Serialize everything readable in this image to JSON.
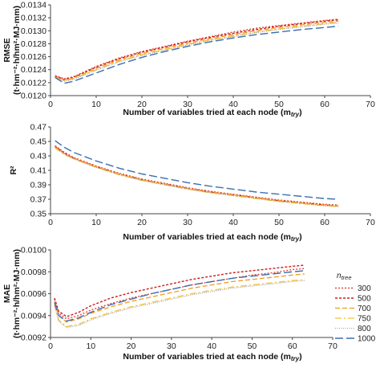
{
  "chart_data": [
    {
      "type": "line",
      "ylabel_main": "RMSE",
      "ylabel_unit": "(t·hm⁻²·h/hm²·MJ·mm)",
      "xlabel": "Number of variables tried at each node (m",
      "xlabel_sub": "try",
      "xlabel_close": ")",
      "xlim": [
        0,
        70
      ],
      "ylim": [
        0.012,
        0.0134
      ],
      "xticks": [
        "0",
        "10",
        "20",
        "30",
        "40",
        "50",
        "60",
        "70"
      ],
      "yticks": [
        "0.0120",
        "0.0122",
        "0.0124",
        "0.0126",
        "0.0128",
        "0.0130",
        "0.0132",
        "0.0134"
      ],
      "series": [
        {
          "id": "300",
          "color": "#e8463c",
          "x": [
            1,
            3,
            5,
            10,
            15,
            20,
            25,
            30,
            35,
            40,
            45,
            50,
            55,
            60,
            63
          ],
          "y": [
            0.01231,
            0.01226,
            0.01229,
            0.01245,
            0.01258,
            0.01268,
            0.01276,
            0.01284,
            0.01291,
            0.01298,
            0.01304,
            0.01308,
            0.01312,
            0.01316,
            0.01318
          ]
        },
        {
          "id": "500",
          "color": "#c8201f",
          "x": [
            1,
            3,
            5,
            10,
            15,
            20,
            25,
            30,
            35,
            40,
            45,
            50,
            55,
            60,
            63
          ],
          "y": [
            0.0123,
            0.01225,
            0.01228,
            0.01244,
            0.01257,
            0.01267,
            0.01275,
            0.01283,
            0.0129,
            0.01296,
            0.01302,
            0.01307,
            0.01311,
            0.01315,
            0.01317
          ]
        },
        {
          "id": "700",
          "color": "#f39a1e",
          "x": [
            1,
            3,
            5,
            10,
            15,
            20,
            25,
            30,
            35,
            40,
            45,
            50,
            55,
            60,
            63
          ],
          "y": [
            0.01229,
            0.01224,
            0.01227,
            0.01242,
            0.01255,
            0.01265,
            0.01273,
            0.01281,
            0.01288,
            0.01294,
            0.013,
            0.01305,
            0.01309,
            0.01313,
            0.01315
          ]
        },
        {
          "id": "750",
          "color": "#f6c233",
          "x": [
            1,
            3,
            5,
            10,
            15,
            20,
            25,
            30,
            35,
            40,
            45,
            50,
            55,
            60,
            63
          ],
          "y": [
            0.01228,
            0.01223,
            0.01226,
            0.0124,
            0.01253,
            0.01263,
            0.01271,
            0.01279,
            0.01286,
            0.01292,
            0.01298,
            0.01303,
            0.01307,
            0.01311,
            0.01313
          ]
        },
        {
          "id": "800",
          "color": "#9b9b9b",
          "x": [
            1,
            3,
            5,
            10,
            15,
            20,
            25,
            30,
            35,
            40,
            45,
            50,
            55,
            60,
            63
          ],
          "y": [
            0.01228,
            0.01222,
            0.01225,
            0.01239,
            0.01252,
            0.01262,
            0.0127,
            0.01278,
            0.01285,
            0.01291,
            0.01297,
            0.01302,
            0.01306,
            0.0131,
            0.01312
          ]
        },
        {
          "id": "1000",
          "color": "#3a6fb0",
          "x": [
            1,
            3,
            5,
            10,
            15,
            20,
            25,
            30,
            35,
            40,
            45,
            50,
            55,
            60,
            63
          ],
          "y": [
            0.01228,
            0.01219,
            0.01222,
            0.01235,
            0.01248,
            0.01259,
            0.01268,
            0.01276,
            0.01283,
            0.01289,
            0.01294,
            0.01298,
            0.01302,
            0.01305,
            0.01307
          ]
        }
      ]
    },
    {
      "type": "line",
      "ylabel_main": "R²",
      "ylabel_unit": "",
      "xlabel": "Number of variables tried at each node (m",
      "xlabel_sub": "try",
      "xlabel_close": ")",
      "xlim": [
        0,
        70
      ],
      "ylim": [
        0.35,
        0.47
      ],
      "xticks": [
        "0",
        "10",
        "20",
        "30",
        "40",
        "50",
        "60",
        "70"
      ],
      "yticks": [
        "0.35",
        "0.37",
        "0.39",
        "0.41",
        "0.43",
        "0.45",
        "0.47"
      ],
      "series": [
        {
          "id": "300",
          "color": "#e8463c",
          "x": [
            1,
            3,
            5,
            10,
            15,
            20,
            25,
            30,
            35,
            40,
            45,
            50,
            55,
            60,
            63
          ],
          "y": [
            0.444,
            0.435,
            0.428,
            0.416,
            0.406,
            0.398,
            0.392,
            0.386,
            0.381,
            0.377,
            0.373,
            0.369,
            0.366,
            0.363,
            0.362
          ]
        },
        {
          "id": "500",
          "color": "#c8201f",
          "x": [
            1,
            3,
            5,
            10,
            15,
            20,
            25,
            30,
            35,
            40,
            45,
            50,
            55,
            60,
            63
          ],
          "y": [
            0.443,
            0.434,
            0.427,
            0.415,
            0.405,
            0.397,
            0.391,
            0.385,
            0.38,
            0.376,
            0.372,
            0.368,
            0.365,
            0.362,
            0.361
          ]
        },
        {
          "id": "700",
          "color": "#f39a1e",
          "x": [
            1,
            3,
            5,
            10,
            15,
            20,
            25,
            30,
            35,
            40,
            45,
            50,
            55,
            60,
            63
          ],
          "y": [
            0.442,
            0.433,
            0.427,
            0.415,
            0.405,
            0.397,
            0.391,
            0.385,
            0.38,
            0.376,
            0.372,
            0.368,
            0.365,
            0.362,
            0.361
          ]
        },
        {
          "id": "750",
          "color": "#f6c233",
          "x": [
            1,
            3,
            5,
            10,
            15,
            20,
            25,
            30,
            35,
            40,
            45,
            50,
            55,
            60,
            63
          ],
          "y": [
            0.441,
            0.432,
            0.426,
            0.414,
            0.404,
            0.396,
            0.39,
            0.384,
            0.379,
            0.375,
            0.371,
            0.367,
            0.364,
            0.361,
            0.36
          ]
        },
        {
          "id": "800",
          "color": "#9b9b9b",
          "x": [
            1,
            3,
            5,
            10,
            15,
            20,
            25,
            30,
            35,
            40,
            45,
            50,
            55,
            60,
            63
          ],
          "y": [
            0.442,
            0.433,
            0.426,
            0.414,
            0.404,
            0.396,
            0.39,
            0.384,
            0.379,
            0.375,
            0.371,
            0.367,
            0.364,
            0.361,
            0.36
          ]
        },
        {
          "id": "1000",
          "color": "#3a6fb0",
          "x": [
            1,
            3,
            5,
            10,
            15,
            20,
            25,
            30,
            35,
            40,
            45,
            50,
            55,
            60,
            63
          ],
          "y": [
            0.451,
            0.442,
            0.435,
            0.423,
            0.413,
            0.405,
            0.399,
            0.393,
            0.388,
            0.384,
            0.38,
            0.377,
            0.374,
            0.371,
            0.37
          ]
        }
      ]
    },
    {
      "type": "line",
      "ylabel_main": "MAE",
      "ylabel_unit": "(t·hm⁻²·h/hm²·MJ·mm)",
      "xlabel": "Number of variables tried at each node (m",
      "xlabel_sub": "try",
      "xlabel_close": ")",
      "xlim": [
        0,
        70
      ],
      "ylim": [
        0.0092,
        0.01
      ],
      "xticks": [
        "0",
        "10",
        "20",
        "30",
        "40",
        "50",
        "60",
        "70"
      ],
      "yticks": [
        "0.0092",
        "0.0094",
        "0.0096",
        "0.0098",
        "0.0100"
      ],
      "legend_title": "n",
      "legend_title_sub": "tree",
      "legend_position": "right",
      "series": [
        {
          "id": "300",
          "color": "#e8463c",
          "x": [
            1,
            2,
            4,
            7,
            10,
            15,
            20,
            25,
            30,
            35,
            40,
            45,
            50,
            55,
            60,
            63
          ],
          "y": [
            0.00955,
            0.00942,
            0.00937,
            0.0094,
            0.00945,
            0.00951,
            0.00956,
            0.0096,
            0.00964,
            0.00968,
            0.00971,
            0.00974,
            0.00977,
            0.00979,
            0.00982,
            0.00983
          ]
        },
        {
          "id": "500",
          "color": "#c8201f",
          "x": [
            1,
            2,
            4,
            7,
            10,
            15,
            20,
            25,
            30,
            35,
            40,
            45,
            50,
            55,
            60,
            63
          ],
          "y": [
            0.00956,
            0.00944,
            0.00939,
            0.00943,
            0.00949,
            0.00956,
            0.00961,
            0.00965,
            0.00969,
            0.00973,
            0.00976,
            0.00979,
            0.00981,
            0.00983,
            0.00985,
            0.00986
          ]
        },
        {
          "id": "700",
          "color": "#f39a1e",
          "x": [
            1,
            2,
            4,
            7,
            10,
            15,
            20,
            25,
            30,
            35,
            40,
            45,
            50,
            55,
            60,
            63
          ],
          "y": [
            0.00953,
            0.0094,
            0.00934,
            0.00937,
            0.00942,
            0.00948,
            0.00953,
            0.00957,
            0.00961,
            0.00965,
            0.00968,
            0.00971,
            0.00973,
            0.00975,
            0.00977,
            0.00978
          ]
        },
        {
          "id": "750",
          "color": "#f6c233",
          "x": [
            1,
            2,
            4,
            7,
            10,
            15,
            20,
            25,
            30,
            35,
            40,
            45,
            50,
            55,
            60,
            63
          ],
          "y": [
            0.0095,
            0.00936,
            0.0093,
            0.00932,
            0.00937,
            0.00943,
            0.00948,
            0.00952,
            0.00956,
            0.0096,
            0.00963,
            0.00966,
            0.00968,
            0.0097,
            0.00972,
            0.00973
          ]
        },
        {
          "id": "800",
          "color": "#9b9b9b",
          "x": [
            1,
            2,
            4,
            7,
            10,
            15,
            20,
            25,
            30,
            35,
            40,
            45,
            50,
            55,
            60,
            63
          ],
          "y": [
            0.00949,
            0.00935,
            0.00929,
            0.00931,
            0.00936,
            0.00942,
            0.00947,
            0.00951,
            0.00955,
            0.00959,
            0.00962,
            0.00965,
            0.00967,
            0.00969,
            0.00971,
            0.00972
          ]
        },
        {
          "id": "1000",
          "color": "#3a6fb0",
          "x": [
            1,
            2,
            4,
            7,
            10,
            15,
            20,
            25,
            30,
            35,
            40,
            45,
            50,
            55,
            60,
            63
          ],
          "y": [
            0.00952,
            0.0094,
            0.00935,
            0.00938,
            0.00943,
            0.0095,
            0.00955,
            0.0096,
            0.00964,
            0.00968,
            0.00971,
            0.00974,
            0.00976,
            0.00978,
            0.0098,
            0.00981
          ]
        }
      ]
    }
  ]
}
